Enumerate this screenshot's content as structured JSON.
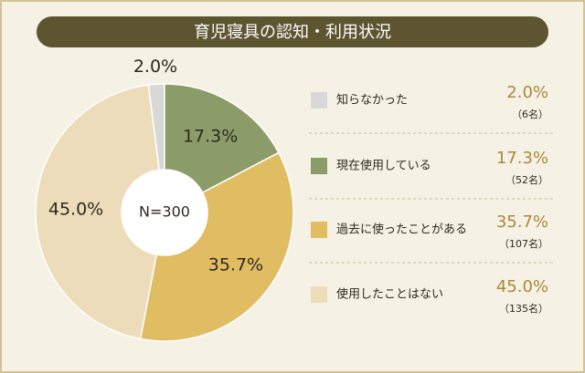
{
  "chart_data": {
    "type": "donut",
    "title": "育児寝具の認知・利用状況",
    "center_label": "N=300",
    "categories": [
      "知らなかった",
      "現在使用している",
      "過去に使ったことがある",
      "使用したことはない"
    ],
    "values": [
      2.0,
      17.3,
      35.7,
      45.0
    ],
    "value_labels": [
      "2.0%",
      "17.3%",
      "35.7%",
      "45.0%"
    ],
    "counts": [
      6,
      52,
      107,
      135
    ],
    "count_labels": [
      "（6名）",
      "（52名）",
      "（107名）",
      "（135名）"
    ],
    "colors": [
      "#d8d8d6",
      "#8b9c68",
      "#e0bd62",
      "#ecdcba"
    ]
  }
}
